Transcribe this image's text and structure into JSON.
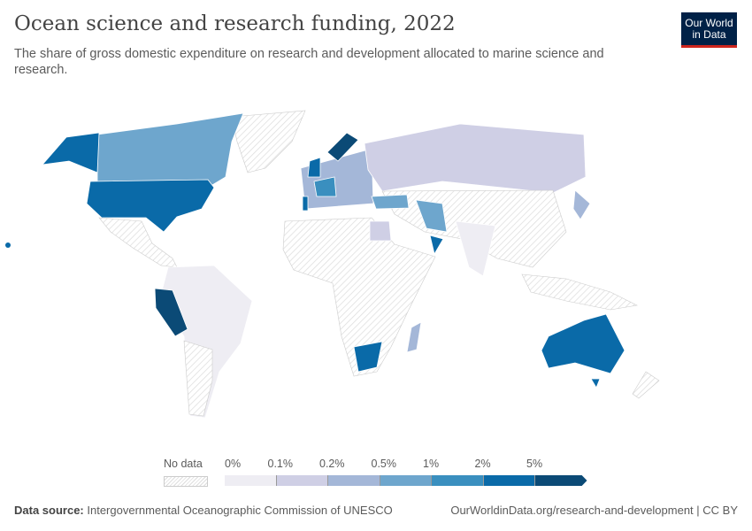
{
  "header": {
    "title": "Ocean science and research funding, 2022",
    "subtitle": "The share of gross domestic expenditure on research and development allocated to marine science and research.",
    "logo": "Our World in Data"
  },
  "legend": {
    "no_data_label": "No data",
    "bins": [
      {
        "label": "0%",
        "color": "#eeedf3"
      },
      {
        "label": "0.1%",
        "color": "#cfcfe5"
      },
      {
        "label": "0.2%",
        "color": "#a4b7d8"
      },
      {
        "label": "0.5%",
        "color": "#6ea6cd"
      },
      {
        "label": "1%",
        "color": "#3a8fbf"
      },
      {
        "label": "2%",
        "color": "#0a6aa8"
      },
      {
        "label": "5%",
        "color": "#0b4a76"
      }
    ]
  },
  "footer": {
    "source_label": "Data source:",
    "source": "Intergovernmental Oceanographic Commission of UNESCO",
    "url": "OurWorldinData.org/research-and-development | CC BY"
  }
}
